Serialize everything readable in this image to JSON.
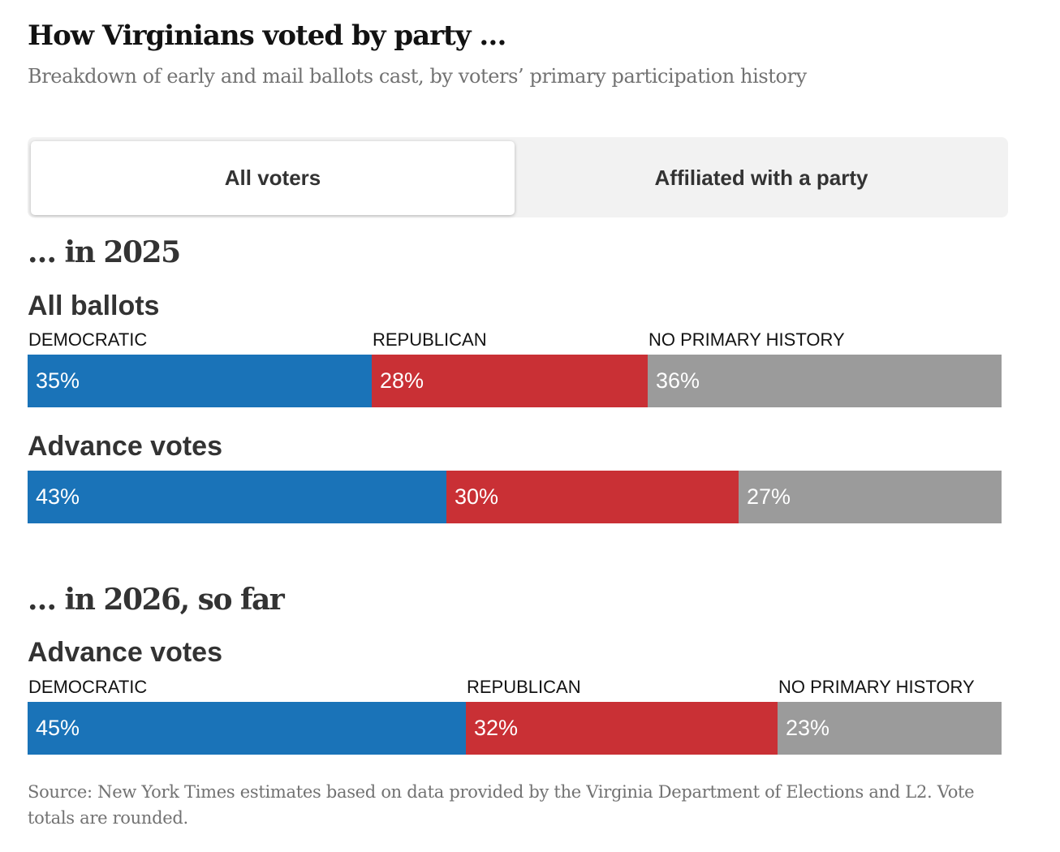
{
  "header": {
    "title": "How Virginians voted by party …",
    "subtitle": "Breakdown of early and mail ballots cast, by voters’ primary participation history"
  },
  "toggle": {
    "options": [
      "All voters",
      "Affiliated with a party"
    ],
    "selected": "All voters"
  },
  "colors": {
    "democratic": "#1a73b8",
    "republican": "#c93035",
    "no_history": "#9b9b9b"
  },
  "chart_data": {
    "type": "stacked-bar",
    "categories": [
      "DEMOCRATIC",
      "REPUBLICAN",
      "NO PRIMARY HISTORY"
    ],
    "sections": [
      {
        "heading": "… in 2025",
        "groups": [
          {
            "label": "All ballots",
            "values": [
              35,
              28,
              36
            ],
            "value_labels": [
              "35%",
              "28%",
              "36%"
            ],
            "show_categories": true
          },
          {
            "label": "Advance votes",
            "values": [
              43,
              30,
              27
            ],
            "value_labels": [
              "43%",
              "30%",
              "27%"
            ],
            "show_categories": false
          }
        ]
      },
      {
        "heading": "… in 2026, so far",
        "groups": [
          {
            "label": "Advance votes",
            "values": [
              45,
              32,
              23
            ],
            "value_labels": [
              "45%",
              "32%",
              "23%"
            ],
            "show_categories": true
          }
        ]
      }
    ]
  },
  "source": "Source: New York Times estimates based on data provided by the Virginia Department of Elections and L2. Vote totals are rounded."
}
